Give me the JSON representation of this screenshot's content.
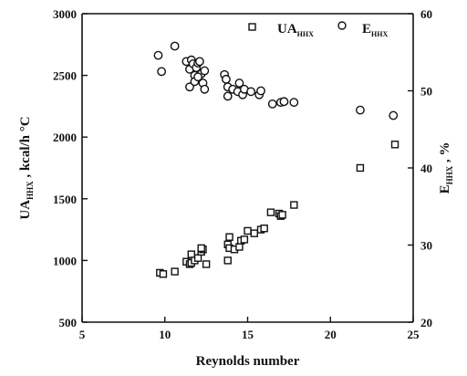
{
  "chart_data": {
    "type": "scatter",
    "x_axis": {
      "label": "Reynolds number",
      "range": [
        5,
        25
      ],
      "ticks": [
        5,
        10,
        15,
        20,
        25
      ]
    },
    "y_axis_left": {
      "label_main": "UA",
      "label_sub": "HHX",
      "label_rest": " , kcal/h °C",
      "range": [
        500,
        3000
      ],
      "ticks": [
        500,
        1000,
        1500,
        2000,
        2500,
        3000
      ]
    },
    "y_axis_right": {
      "label_main": "E",
      "label_sub": "HHX",
      "label_rest": " , %",
      "range": [
        20,
        60
      ],
      "ticks": [
        20,
        30,
        40,
        50,
        60
      ]
    },
    "legend_position": "top-right",
    "series": [
      {
        "name_main": "UA",
        "name_sub": "HHX",
        "marker": "square",
        "axis": "left",
        "x": [
          9.7,
          9.9,
          10.6,
          11.3,
          11.5,
          11.6,
          11.6,
          11.8,
          12.0,
          12.2,
          12.3,
          12.5,
          12.2,
          13.8,
          13.8,
          13.9,
          13.9,
          14.2,
          14.5,
          14.6,
          14.8,
          15.0,
          15.4,
          15.8,
          16.0,
          16.4,
          16.9,
          17.0,
          17.1,
          17.8,
          21.8,
          23.9
        ],
        "y": [
          900,
          890,
          910,
          990,
          970,
          1050,
          980,
          1000,
          1020,
          1070,
          1090,
          970,
          1100,
          1000,
          1130,
          1190,
          1100,
          1090,
          1110,
          1160,
          1170,
          1240,
          1220,
          1250,
          1260,
          1390,
          1380,
          1360,
          1370,
          1450,
          1750,
          1940
        ]
      },
      {
        "name_main": "E",
        "name_sub": "HHX",
        "marker": "circle",
        "axis": "right",
        "x": [
          9.6,
          9.8,
          10.6,
          11.3,
          11.5,
          11.6,
          11.7,
          11.8,
          11.9,
          12.0,
          12.1,
          12.2,
          12.3,
          12.4,
          12.4,
          11.5,
          11.8,
          12.0,
          13.6,
          13.7,
          13.8,
          13.8,
          14.1,
          14.4,
          14.5,
          14.7,
          14.8,
          15.2,
          15.7,
          15.8,
          16.5,
          17.0,
          17.2,
          17.8,
          21.8,
          23.8
        ],
        "y": [
          54.6,
          52.5,
          55.8,
          53.8,
          52.8,
          54.0,
          53.5,
          52.0,
          53.0,
          53.6,
          53.8,
          52.2,
          51.0,
          50.2,
          52.6,
          50.5,
          51.2,
          51.8,
          52.1,
          51.5,
          50.5,
          49.3,
          50.2,
          49.9,
          51.0,
          49.5,
          50.2,
          49.9,
          49.5,
          50.0,
          48.3,
          48.5,
          48.6,
          48.5,
          47.5,
          46.8
        ]
      }
    ]
  }
}
